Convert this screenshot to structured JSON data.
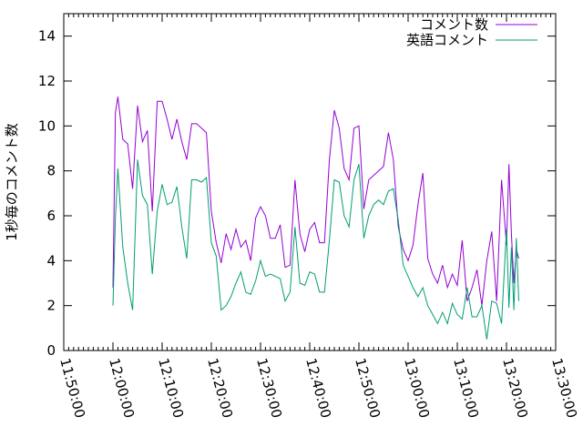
{
  "chart_data": {
    "type": "line",
    "title": "",
    "xlabel": "",
    "ylabel": "1秒毎のコメント数",
    "xlim": [
      "11:50:00",
      "13:30:00"
    ],
    "ylim": [
      0,
      15
    ],
    "x_ticks": [
      "11:50:00",
      "12:00:00",
      "12:10:00",
      "12:20:00",
      "12:30:00",
      "12:40:00",
      "12:50:00",
      "13:00:00",
      "13:10:00",
      "13:20:00",
      "13:30:00"
    ],
    "y_ticks": [
      0,
      2,
      4,
      6,
      8,
      10,
      12,
      14
    ],
    "legend_position": "top-right",
    "grid": false,
    "series": [
      {
        "name": "コメント数",
        "color": "#9400d3",
        "x": [
          "12:00:00",
          "12:00:30",
          "12:01:00",
          "12:02:00",
          "12:03:00",
          "12:04:00",
          "12:05:00",
          "12:06:00",
          "12:07:00",
          "12:08:00",
          "12:09:00",
          "12:10:00",
          "12:11:00",
          "12:12:00",
          "12:13:00",
          "12:14:00",
          "12:15:00",
          "12:16:00",
          "12:17:00",
          "12:18:00",
          "12:19:00",
          "12:20:00",
          "12:21:00",
          "12:22:00",
          "12:23:00",
          "12:24:00",
          "12:25:00",
          "12:26:00",
          "12:27:00",
          "12:28:00",
          "12:29:00",
          "12:30:00",
          "12:31:00",
          "12:32:00",
          "12:33:00",
          "12:34:00",
          "12:35:00",
          "12:36:00",
          "12:37:00",
          "12:38:00",
          "12:39:00",
          "12:40:00",
          "12:41:00",
          "12:42:00",
          "12:43:00",
          "12:44:00",
          "12:45:00",
          "12:46:00",
          "12:47:00",
          "12:48:00",
          "12:49:00",
          "12:50:00",
          "12:51:00",
          "12:52:00",
          "12:53:00",
          "12:54:00",
          "12:55:00",
          "12:56:00",
          "12:57:00",
          "12:58:00",
          "12:59:00",
          "13:00:00",
          "13:01:00",
          "13:02:00",
          "13:03:00",
          "13:04:00",
          "13:05:00",
          "13:06:00",
          "13:07:00",
          "13:08:00",
          "13:09:00",
          "13:10:00",
          "13:11:00",
          "13:12:00",
          "13:13:00",
          "13:14:00",
          "13:15:00",
          "13:16:00",
          "13:17:00",
          "13:18:00",
          "13:19:00",
          "13:20:00",
          "13:20:30",
          "13:21:00",
          "13:21:30",
          "13:22:00",
          "13:22:30"
        ],
        "y": [
          2.8,
          10.6,
          11.3,
          9.4,
          9.2,
          7.2,
          10.9,
          9.3,
          9.8,
          6.2,
          11.1,
          11.1,
          10.3,
          9.4,
          10.3,
          9.3,
          8.5,
          10.1,
          10.1,
          9.9,
          9.7,
          6.2,
          4.8,
          3.9,
          5.2,
          4.5,
          5.4,
          4.6,
          4.9,
          4.0,
          5.9,
          6.4,
          6.0,
          5.0,
          5.0,
          5.6,
          3.7,
          3.8,
          7.6,
          5.2,
          4.4,
          5.4,
          5.7,
          4.8,
          4.8,
          8.5,
          10.7,
          9.9,
          8.1,
          7.6,
          9.9,
          10.0,
          6.3,
          7.6,
          7.8,
          8.0,
          8.2,
          9.7,
          8.5,
          5.5,
          4.5,
          4.0,
          4.7,
          6.5,
          7.9,
          4.1,
          3.4,
          3.0,
          3.8,
          2.8,
          3.4,
          2.9,
          4.9,
          2.2,
          2.8,
          3.6,
          2.0,
          4.0,
          5.3,
          2.2,
          7.6,
          4.7,
          8.3,
          5.2,
          3.0,
          4.5,
          4.1
        ]
      },
      {
        "name": "英語コメント",
        "color": "#009e73",
        "x": [
          "12:00:00",
          "12:00:30",
          "12:01:00",
          "12:02:00",
          "12:03:00",
          "12:04:00",
          "12:05:00",
          "12:06:00",
          "12:07:00",
          "12:08:00",
          "12:09:00",
          "12:10:00",
          "12:11:00",
          "12:12:00",
          "12:13:00",
          "12:14:00",
          "12:15:00",
          "12:16:00",
          "12:17:00",
          "12:18:00",
          "12:19:00",
          "12:20:00",
          "12:21:00",
          "12:22:00",
          "12:23:00",
          "12:24:00",
          "12:25:00",
          "12:26:00",
          "12:27:00",
          "12:28:00",
          "12:29:00",
          "12:30:00",
          "12:31:00",
          "12:32:00",
          "12:33:00",
          "12:34:00",
          "12:35:00",
          "12:36:00",
          "12:37:00",
          "12:38:00",
          "12:39:00",
          "12:40:00",
          "12:41:00",
          "12:42:00",
          "12:43:00",
          "12:44:00",
          "12:45:00",
          "12:46:00",
          "12:47:00",
          "12:48:00",
          "12:49:00",
          "12:50:00",
          "12:51:00",
          "12:52:00",
          "12:53:00",
          "12:54:00",
          "12:55:00",
          "12:56:00",
          "12:57:00",
          "12:58:00",
          "12:59:00",
          "13:00:00",
          "13:01:00",
          "13:02:00",
          "13:03:00",
          "13:04:00",
          "13:05:00",
          "13:06:00",
          "13:07:00",
          "13:08:00",
          "13:09:00",
          "13:10:00",
          "13:11:00",
          "13:12:00",
          "13:13:00",
          "13:14:00",
          "13:15:00",
          "13:16:00",
          "13:17:00",
          "13:18:00",
          "13:19:00",
          "13:20:00",
          "13:20:30",
          "13:21:00",
          "13:21:30",
          "13:22:00",
          "13:22:30"
        ],
        "y": [
          2.0,
          5.9,
          8.1,
          4.6,
          3.0,
          1.8,
          8.5,
          6.9,
          6.5,
          3.4,
          6.2,
          7.4,
          6.5,
          6.6,
          7.3,
          5.5,
          4.1,
          7.6,
          7.6,
          7.5,
          7.7,
          4.8,
          4.2,
          1.8,
          2.0,
          2.4,
          3.0,
          3.5,
          2.6,
          2.5,
          3.1,
          4.0,
          3.3,
          3.4,
          3.3,
          3.2,
          2.2,
          2.6,
          5.5,
          3.0,
          2.9,
          3.5,
          3.4,
          2.6,
          2.6,
          4.9,
          7.6,
          7.5,
          6.0,
          5.5,
          7.6,
          8.3,
          5.0,
          6.0,
          6.5,
          6.7,
          6.5,
          7.1,
          7.2,
          5.8,
          3.8,
          3.3,
          2.8,
          2.4,
          2.8,
          2.0,
          1.6,
          1.2,
          1.7,
          1.2,
          2.1,
          1.6,
          1.4,
          2.8,
          1.5,
          1.5,
          2.0,
          0.5,
          2.2,
          2.1,
          1.2,
          5.4,
          1.9,
          4.6,
          1.8,
          5.0,
          2.2
        ]
      }
    ]
  }
}
